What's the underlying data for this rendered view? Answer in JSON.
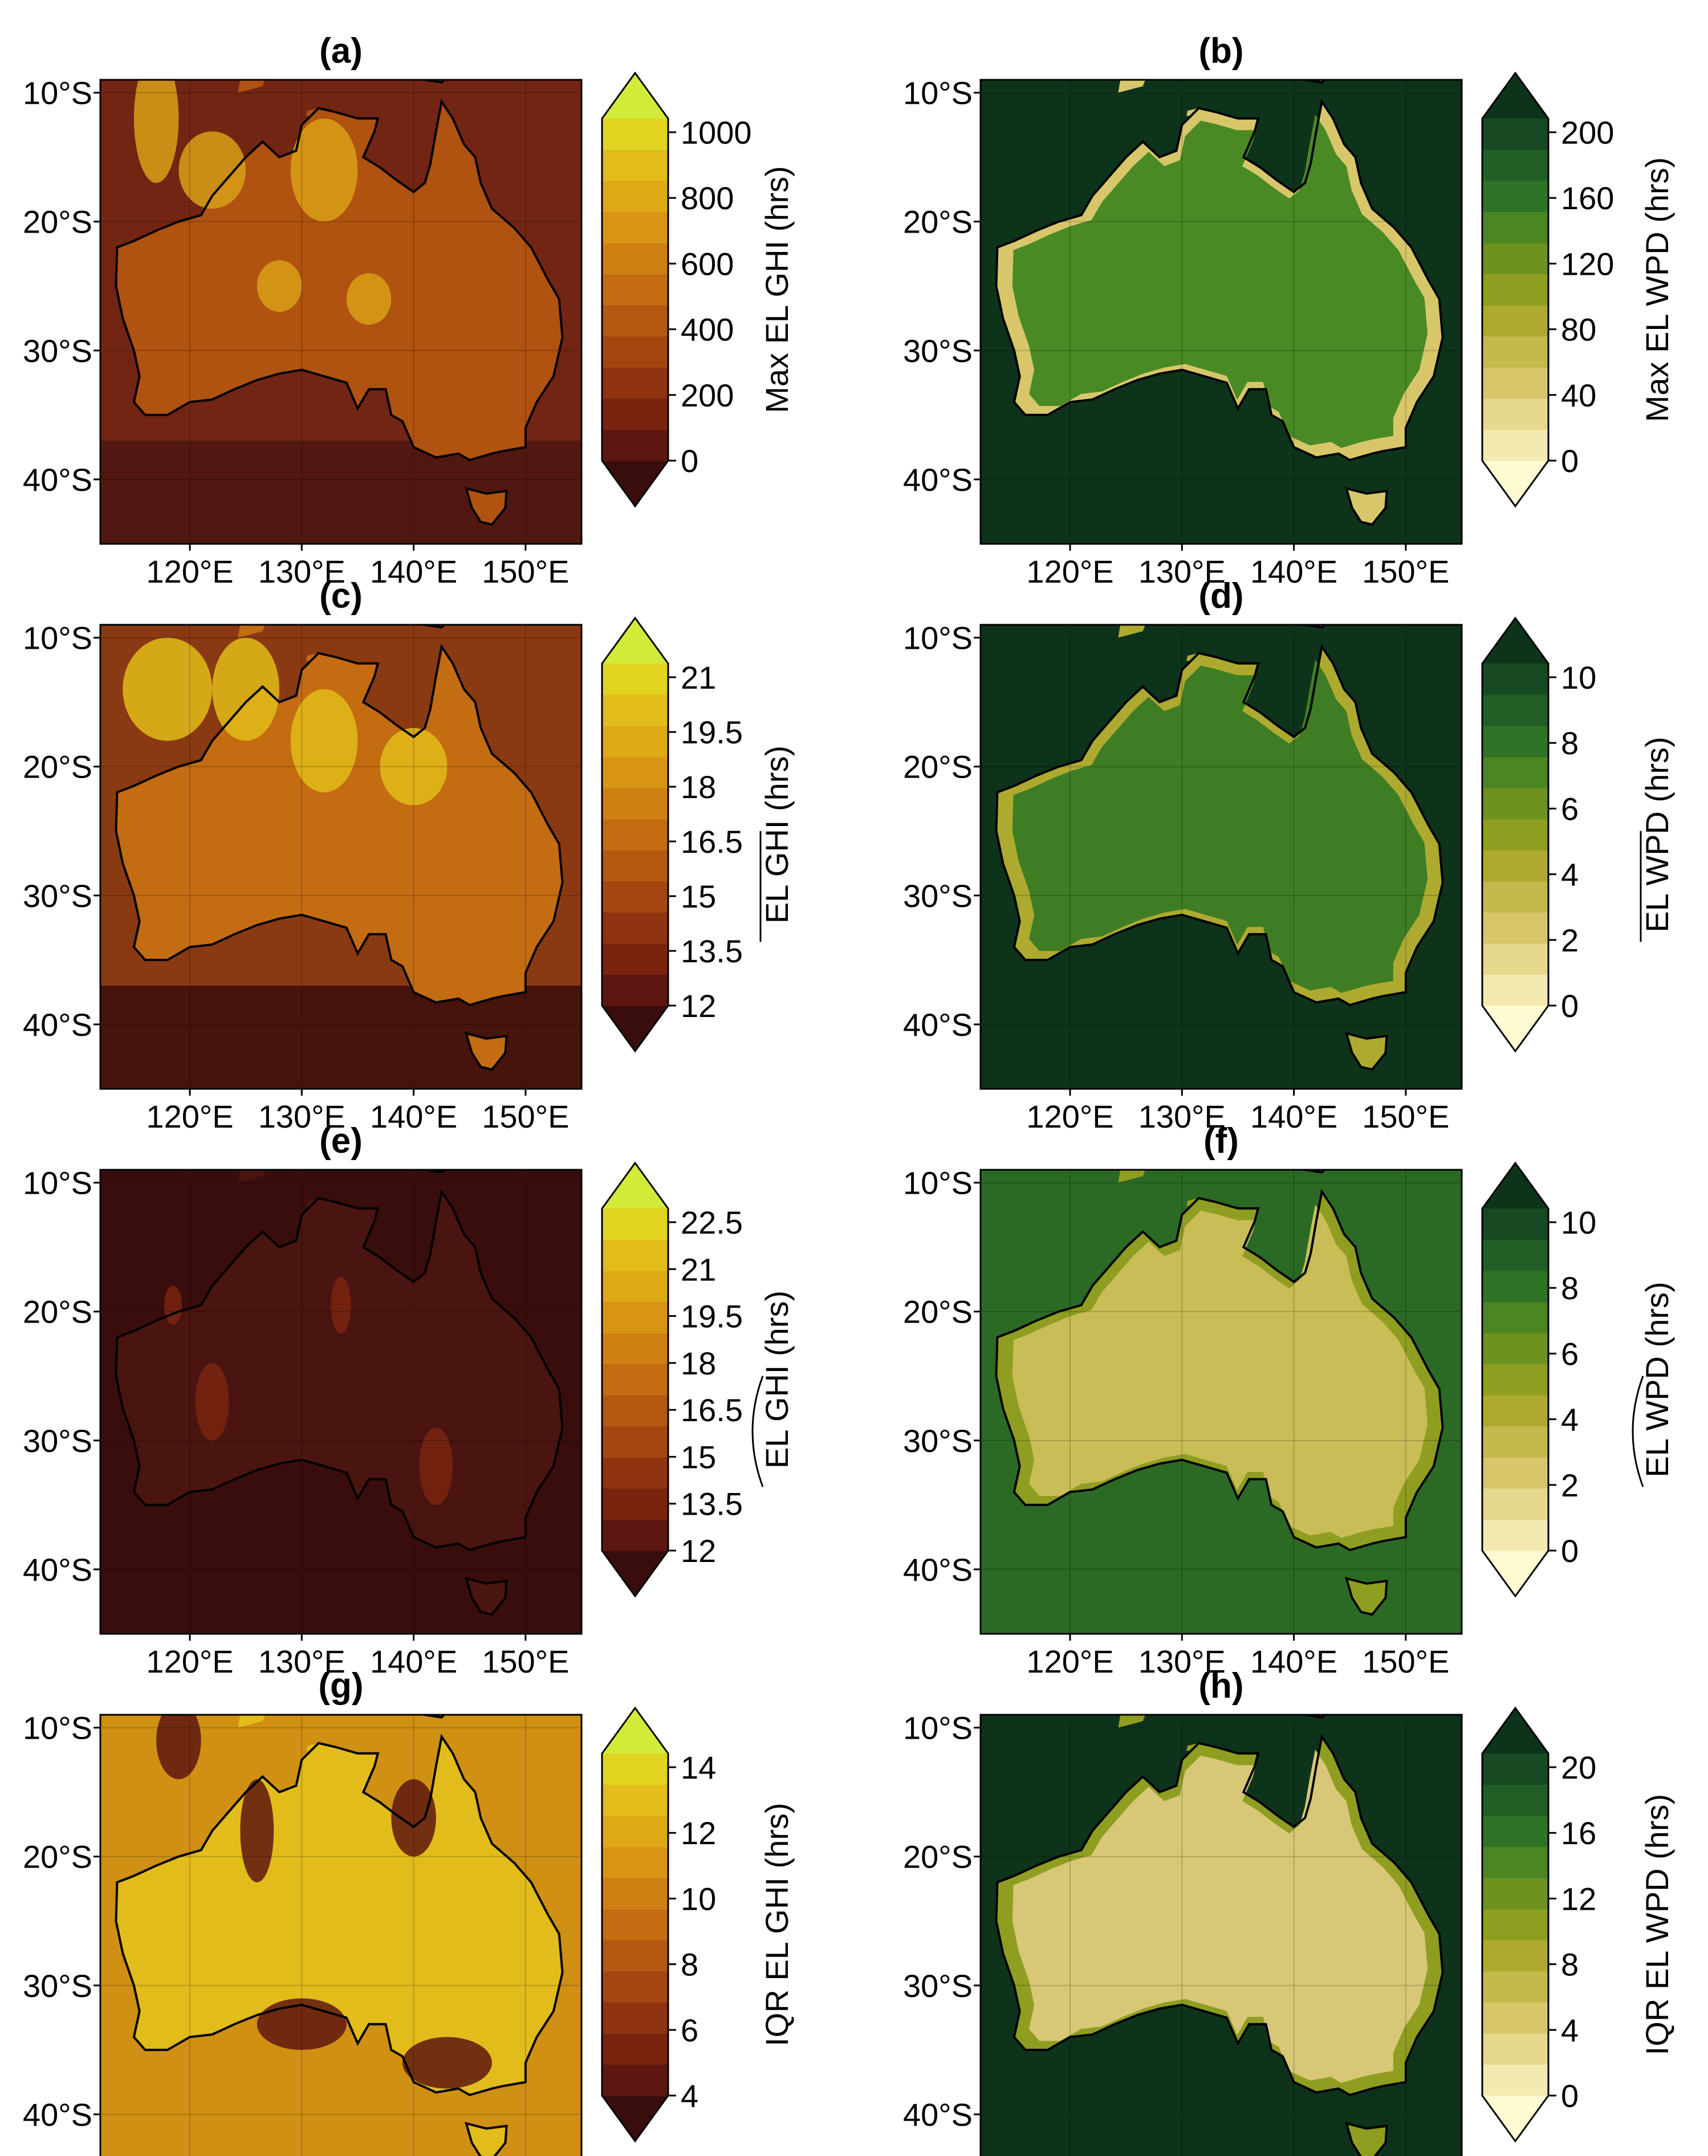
{
  "figure": {
    "lat_ticks": [
      "10°S",
      "20°S",
      "30°S",
      "40°S"
    ],
    "lon_ticks": [
      "120°E",
      "130°E",
      "140°E",
      "150°E"
    ],
    "panels": [
      {
        "id": "a",
        "title": "(a)",
        "variable": "GHI",
        "colorbar_label": "Max EL GHI (hrs)",
        "label_decoration": "none",
        "colorbar_ticks": [
          "0",
          "200",
          "400",
          "600",
          "800",
          "1000"
        ],
        "colormap": "ghi"
      },
      {
        "id": "b",
        "title": "(b)",
        "variable": "WPD",
        "colorbar_label": "Max EL WPD (hrs)",
        "label_decoration": "none",
        "colorbar_ticks": [
          "0",
          "40",
          "80",
          "120",
          "160",
          "200"
        ],
        "colormap": "wpd"
      },
      {
        "id": "c",
        "title": "(c)",
        "variable": "GHI",
        "colorbar_label": "EL GHI (hrs)",
        "label_decoration": "overline",
        "colorbar_ticks": [
          "12",
          "13.5",
          "15",
          "16.5",
          "18",
          "19.5",
          "21"
        ],
        "colormap": "ghi"
      },
      {
        "id": "d",
        "title": "(d)",
        "variable": "WPD",
        "colorbar_label": "EL WPD (hrs)",
        "label_decoration": "overline",
        "colorbar_ticks": [
          "0",
          "2",
          "4",
          "6",
          "8",
          "10"
        ],
        "colormap": "wpd"
      },
      {
        "id": "e",
        "title": "(e)",
        "variable": "GHI",
        "colorbar_label": "EL GHI (hrs)",
        "label_decoration": "tilde",
        "colorbar_ticks": [
          "12",
          "13.5",
          "15",
          "16.5",
          "18",
          "19.5",
          "21",
          "22.5"
        ],
        "colormap": "ghi"
      },
      {
        "id": "f",
        "title": "(f)",
        "variable": "WPD",
        "colorbar_label": "EL WPD (hrs)",
        "label_decoration": "tilde",
        "colorbar_ticks": [
          "0",
          "2",
          "4",
          "6",
          "8",
          "10"
        ],
        "colormap": "wpd"
      },
      {
        "id": "g",
        "title": "(g)",
        "variable": "GHI",
        "colorbar_label": "IQR EL GHI (hrs)",
        "label_decoration": "none",
        "colorbar_ticks": [
          "4",
          "6",
          "8",
          "10",
          "12",
          "14"
        ],
        "colormap": "ghi"
      },
      {
        "id": "h",
        "title": "(h)",
        "variable": "WPD",
        "colorbar_label": "IQR EL WPD (hrs)",
        "label_decoration": "none",
        "colorbar_ticks": [
          "0",
          "4",
          "8",
          "12",
          "16",
          "20"
        ],
        "colormap": "wpd"
      }
    ],
    "colormaps": {
      "ghi": [
        "#3a0d0d",
        "#5e1710",
        "#7a2410",
        "#8f3310",
        "#a54510",
        "#b65812",
        "#c46c12",
        "#cf8013",
        "#d89414",
        "#dfa816",
        "#e2bc1a",
        "#e0d420",
        "#d2ea38"
      ],
      "wpd": [
        "#fffbd2",
        "#f4e9b0",
        "#e6d88c",
        "#d7c76a",
        "#c4b94c",
        "#aeaa30",
        "#8f9e20",
        "#6d9220",
        "#4c8622",
        "#2f7426",
        "#215f27",
        "#174a22",
        "#0e331b"
      ]
    },
    "field_colors": {
      "a": {
        "ocean": "#722513",
        "ocean_south": "#4a1610",
        "land": "#b05210",
        "hot": "#d9a017"
      },
      "b": {
        "ocean": "#0e331b",
        "land": "#4a8a25",
        "coast": "#d7c76a"
      },
      "c": {
        "ocean": "#8a3a12",
        "ocean_south": "#3a0d0d",
        "land": "#c46c12",
        "hot": "#e2bc1a"
      },
      "d": {
        "ocean": "#0e331b",
        "land": "#3f7d24",
        "coast": "#aeaa30"
      },
      "e": {
        "ocean": "#3a0d0d",
        "land": "#4a1410",
        "hot": "#7a2410"
      },
      "f": {
        "ocean": "#2a6a25",
        "land": "#c9bd58",
        "coast": "#8f9e20"
      },
      "g": {
        "ocean": "#cf9013",
        "land": "#e2bc1a",
        "hot": "#5e1710"
      },
      "h": {
        "ocean": "#0e331b",
        "land": "#d7c777",
        "coast": "#8f9e20"
      }
    }
  }
}
